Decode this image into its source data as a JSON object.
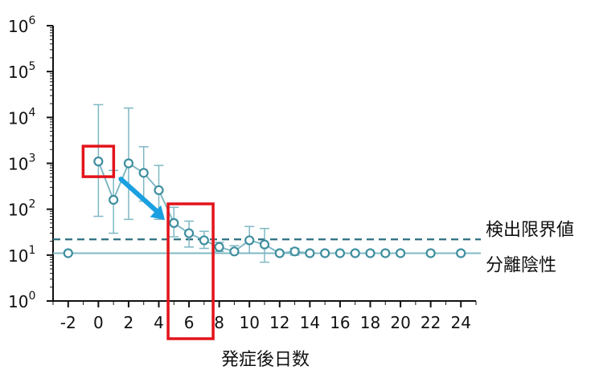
{
  "chart_data": {
    "type": "scatter",
    "title": "",
    "xlabel": "発症後日数",
    "ylabel": "",
    "y_scale": "log",
    "x_range": [
      -3,
      25
    ],
    "ylim": [
      1,
      1000000
    ],
    "x_ticks": [
      -2,
      0,
      2,
      4,
      6,
      8,
      10,
      12,
      14,
      16,
      18,
      20,
      22,
      24
    ],
    "y_ticks": [
      {
        "value": 1,
        "base": "10",
        "exp": "0"
      },
      {
        "value": 10,
        "base": "10",
        "exp": "1"
      },
      {
        "value": 100,
        "base": "10",
        "exp": "2"
      },
      {
        "value": 1000,
        "base": "10",
        "exp": "3"
      },
      {
        "value": 10000,
        "base": "10",
        "exp": "4"
      },
      {
        "value": 100000,
        "base": "10",
        "exp": "5"
      },
      {
        "value": 1000000,
        "base": "10",
        "exp": "6"
      }
    ],
    "series": [
      {
        "points": [
          {
            "x": 0,
            "y": 1100,
            "lo": 70,
            "hi": 19000
          },
          {
            "x": 1,
            "y": 160,
            "lo": 30,
            "hi": 700
          },
          {
            "x": 2,
            "y": 1000,
            "lo": 60,
            "hi": 16000
          },
          {
            "x": 3,
            "y": 620,
            "lo": 150,
            "hi": 2300
          },
          {
            "x": 4,
            "y": 260,
            "lo": 60,
            "hi": 900
          },
          {
            "x": 5,
            "y": 50,
            "lo": 25,
            "hi": 110
          },
          {
            "x": 6,
            "y": 30,
            "lo": 15,
            "hi": 55
          },
          {
            "x": 7,
            "y": 21,
            "lo": 14,
            "hi": 33
          },
          {
            "x": 8,
            "y": 15,
            "lo": 12,
            "hi": 19
          },
          {
            "x": 9,
            "y": 12,
            "lo": 11,
            "hi": 16
          },
          {
            "x": 10,
            "y": 21,
            "lo": 11,
            "hi": 42
          },
          {
            "x": 11,
            "y": 17,
            "lo": 7,
            "hi": 38
          },
          {
            "x": 12,
            "y": 11,
            "lo": 11,
            "hi": 11
          },
          {
            "x": 13,
            "y": 12,
            "lo": 10,
            "hi": 14
          },
          {
            "x": 14,
            "y": 11,
            "lo": 11,
            "hi": 11
          },
          {
            "x": 15,
            "y": 11,
            "lo": 11,
            "hi": 11
          },
          {
            "x": 16,
            "y": 11,
            "lo": 11,
            "hi": 11
          },
          {
            "x": 17,
            "y": 11,
            "lo": 11,
            "hi": 11
          },
          {
            "x": 18,
            "y": 11,
            "lo": 11,
            "hi": 11
          },
          {
            "x": 19,
            "y": 11,
            "lo": 11,
            "hi": 11
          },
          {
            "x": 20,
            "y": 11,
            "lo": 11,
            "hi": 11
          }
        ]
      }
    ],
    "isolated_points": [
      {
        "x": -2,
        "y": 11
      },
      {
        "x": 22,
        "y": 11
      },
      {
        "x": 24,
        "y": 11
      }
    ],
    "detection_limit": {
      "y": 22,
      "label": "検出限界値"
    },
    "negative_line": {
      "y": 11,
      "label": "分離陰性"
    },
    "highlight_points": [
      0,
      6
    ],
    "colors": {
      "series": "#3e8e9e",
      "marker_fill": "#ffffff",
      "line": "#7fb8c4",
      "dashed": "#2c6f80",
      "highlight": "#e3131b",
      "arrow": "#1aa0e0"
    }
  }
}
